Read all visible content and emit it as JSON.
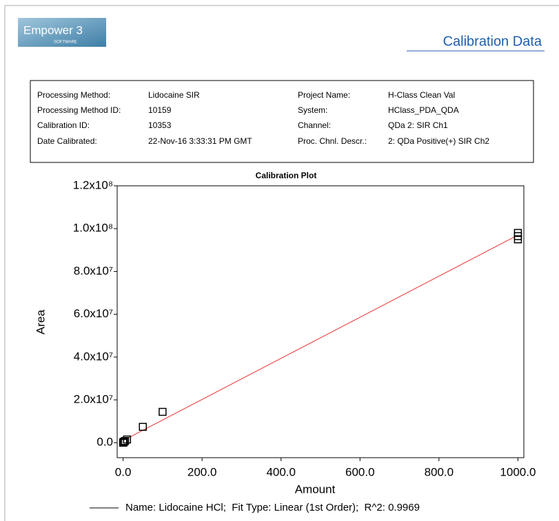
{
  "header": {
    "logo": "Empower 3",
    "logo_sub": "SOFTWARE",
    "title": "Calibration Data"
  },
  "info": {
    "rows": [
      [
        "Processing Method:",
        "Lidocaine SIR",
        "Project Name:",
        "H-Class Clean Val"
      ],
      [
        "Processing Method ID:",
        "10159",
        "System:",
        "HClass_PDA_QDA"
      ],
      [
        "Calibration ID:",
        "10353",
        "Channel:",
        "QDa 2: SIR Ch1"
      ],
      [
        "Date Calibrated:",
        "22-Nov-16 3:33:31 PM GMT",
        "Proc. Chnl. Descr.:",
        "2: QDa Positive(+) SIR Ch2"
      ]
    ]
  },
  "chart_data": {
    "type": "scatter",
    "title": "Calibration Plot",
    "x_label": "Amount",
    "y_label": "Area",
    "x": [
      0,
      0.5,
      1,
      2,
      5,
      10,
      50,
      100,
      1000,
      1000,
      1000
    ],
    "values": [
      0,
      100000,
      200000,
      400000,
      800000,
      1500000,
      7400000,
      14400000,
      95000000,
      96500000,
      98000000
    ],
    "color": "#000000",
    "fit": {
      "x": [
        0,
        1000
      ],
      "values": [
        1000000,
        97000000
      ],
      "color": "#e8312f"
    },
    "legend": "Name: Lidocaine HCl;  Fit Type: Linear (1st Order);  R^2: 0.9969",
    "xlim": [
      -15,
      1015
    ],
    "ylim": [
      -7000000,
      120000000
    ],
    "xticks": [
      {
        "value": 0,
        "label": "0.0"
      },
      {
        "value": 200,
        "label": "200.0"
      },
      {
        "value": 400,
        "label": "400.0"
      },
      {
        "value": 600,
        "label": "600.0"
      },
      {
        "value": 800,
        "label": "800.0"
      },
      {
        "value": 1000,
        "label": "1000.0"
      }
    ],
    "yticks": [
      {
        "value": 0,
        "label": "0.0"
      },
      {
        "value": 20000000,
        "label": "2.0x10⁷"
      },
      {
        "value": 40000000,
        "label": "4.0x10⁷"
      },
      {
        "value": 60000000,
        "label": "6.0x10⁷"
      },
      {
        "value": 80000000,
        "label": "8.0x10⁷"
      },
      {
        "value": 100000000,
        "label": "1.0x10⁸"
      },
      {
        "value": 120000000,
        "label": "1.2x10⁸"
      }
    ]
  }
}
